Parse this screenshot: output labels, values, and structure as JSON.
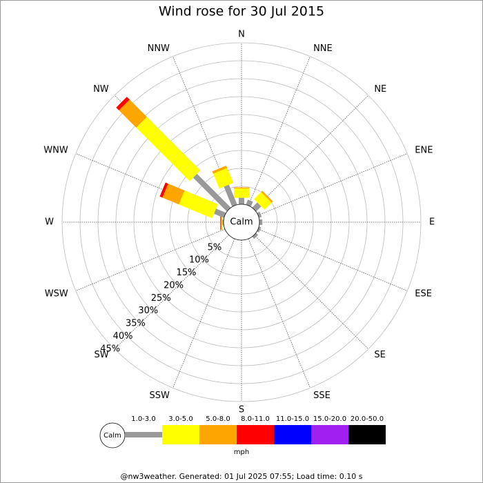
{
  "chart_data": {
    "type": "windrose",
    "title": "Wind rose for 30 Jul 2015",
    "center_label": "Calm",
    "unit": "mph",
    "footer": "@nw3weather.  Generated: 01 Jul 2025 07:55; Load time: 0.10 s",
    "categories": [
      "N",
      "NNE",
      "NE",
      "ENE",
      "E",
      "ESE",
      "SE",
      "SSE",
      "S",
      "SSW",
      "SW",
      "WSW",
      "W",
      "WNW",
      "NW",
      "NNW"
    ],
    "rlim": [
      0,
      45
    ],
    "rticks": [
      {
        "value": 5,
        "label": "5%"
      },
      {
        "value": 10,
        "label": "10%"
      },
      {
        "value": 15,
        "label": "15%"
      },
      {
        "value": 20,
        "label": "20%"
      },
      {
        "value": 25,
        "label": "25%"
      },
      {
        "value": 30,
        "label": "30%"
      },
      {
        "value": 35,
        "label": "35%"
      },
      {
        "value": 40,
        "label": "40%"
      },
      {
        "value": 45,
        "label": "45%"
      }
    ],
    "series": [
      {
        "name": "1.0-3.0",
        "color": "#999999",
        "values": [
          1.8,
          1.5,
          2,
          0.8,
          0.8,
          0.6,
          0.8,
          0,
          0,
          0,
          0,
          0,
          0.3,
          3,
          13.3,
          6
        ]
      },
      {
        "name": "3.0-5.0",
        "color": "#ffff00",
        "values": [
          2.6,
          0,
          2.8,
          0,
          0,
          0,
          0,
          0,
          0,
          0,
          0,
          0,
          0.2,
          10,
          21.1,
          4.5
        ]
      },
      {
        "name": "5.0-8.0",
        "color": "#ffa500",
        "values": [
          0.3,
          0,
          0.5,
          0,
          0,
          0,
          0,
          0,
          0,
          0,
          0,
          0,
          0.2,
          5,
          6.8,
          0.7
        ]
      },
      {
        "name": "8.0-11.0",
        "color": "#ff0000",
        "values": [
          0,
          0,
          0,
          0,
          0,
          0,
          0,
          0,
          0,
          0,
          0,
          0,
          0.2,
          0.8,
          1.1,
          0
        ]
      },
      {
        "name": "11.0-15.0",
        "color": "#0000ff",
        "values": [
          0,
          0,
          0,
          0,
          0,
          0,
          0,
          0,
          0,
          0,
          0,
          0,
          0,
          0,
          0,
          0
        ]
      },
      {
        "name": "15.0-20.0",
        "color": "#a020f0",
        "values": [
          0,
          0,
          0,
          0,
          0,
          0,
          0,
          0,
          0,
          0,
          0,
          0,
          0,
          0,
          0,
          0
        ]
      },
      {
        "name": "20.0-50.0",
        "color": "#000000",
        "values": [
          0,
          0,
          0,
          0,
          0,
          0,
          0,
          0,
          0,
          0,
          0,
          0,
          0,
          0,
          0,
          0
        ]
      }
    ]
  }
}
